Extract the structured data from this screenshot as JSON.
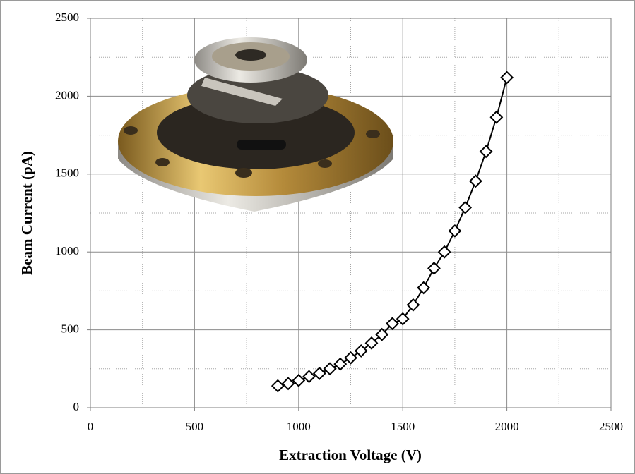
{
  "chart_data": {
    "type": "line",
    "x_label": "Extraction Voltage (V)",
    "y_label": "Beam Current (pA)",
    "x": [
      900,
      950,
      1000,
      1050,
      1100,
      1150,
      1200,
      1250,
      1300,
      1350,
      1400,
      1450,
      1500,
      1550,
      1600,
      1650,
      1700,
      1750,
      1800,
      1850,
      1900,
      1950,
      2000
    ],
    "values": [
      140,
      155,
      175,
      200,
      220,
      250,
      280,
      320,
      365,
      415,
      470,
      540,
      570,
      660,
      770,
      895,
      1000,
      1135,
      1285,
      1455,
      1645,
      1865,
      2120
    ],
    "color": "#000000",
    "marker": "diamond",
    "xlim": [
      0,
      2500
    ],
    "xticks": [
      0,
      500,
      1000,
      1500,
      2000,
      2500
    ],
    "ylim": [
      0,
      2500
    ],
    "yticks": [
      0,
      500,
      1000,
      1500,
      2000,
      2500
    ],
    "x_minor_grid": [
      250,
      750,
      1250,
      1750,
      2250
    ],
    "y_minor_grid": [
      250,
      750,
      1250,
      1750,
      2250
    ],
    "grid": true
  }
}
